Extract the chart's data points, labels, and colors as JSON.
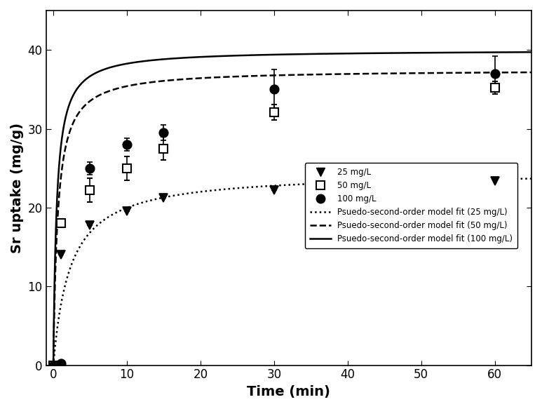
{
  "title": "",
  "xlabel": "Time (min)",
  "ylabel": "Sr uptake (mg/g)",
  "xlim": [
    -1,
    65
  ],
  "ylim": [
    0,
    45
  ],
  "xticks": [
    0,
    10,
    20,
    30,
    40,
    50,
    60
  ],
  "yticks": [
    0,
    10,
    20,
    30,
    40
  ],
  "data_25": {
    "x": [
      0,
      1,
      5,
      10,
      15,
      30,
      60
    ],
    "y": [
      0,
      14.0,
      17.8,
      19.5,
      21.2,
      22.2,
      23.4
    ],
    "yerr": [
      0,
      0,
      0,
      0,
      0,
      0,
      0
    ]
  },
  "data_50": {
    "x": [
      0,
      1,
      5,
      10,
      15,
      30,
      60
    ],
    "y": [
      0,
      18.0,
      22.2,
      25.0,
      27.5,
      32.1,
      35.2
    ],
    "yerr": [
      0,
      0,
      1.5,
      1.5,
      1.5,
      1.0,
      0.8
    ]
  },
  "data_100": {
    "x": [
      0,
      1,
      5,
      10,
      15,
      30,
      60
    ],
    "y": [
      0,
      0.2,
      25.0,
      28.0,
      29.5,
      35.0,
      37.0
    ],
    "yerr": [
      0,
      0,
      0.8,
      0.8,
      1.0,
      2.5,
      2.2
    ]
  },
  "fit_25": {
    "qe": 24.5,
    "k2": 0.018
  },
  "fit_50": {
    "qe": 37.5,
    "k2": 0.045
  },
  "fit_100": {
    "qe": 40.0,
    "k2": 0.055
  },
  "marker_color": "black",
  "line_color": "black",
  "background_color": "#ffffff",
  "legend_fontsize": 8.5,
  "axis_label_fontsize": 14,
  "tick_fontsize": 12
}
